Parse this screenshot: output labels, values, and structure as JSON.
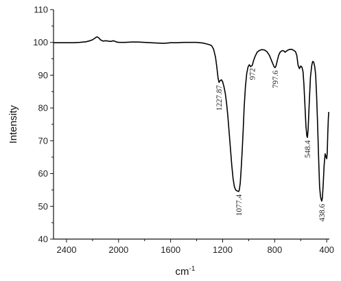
{
  "chart_data": {
    "type": "line",
    "xlabel": "cm",
    "xlabel_superscript": "-1",
    "ylabel": "Intensity",
    "xlim": [
      2500,
      380
    ],
    "ylim": [
      40,
      110
    ],
    "x_reversed": true,
    "xticks": [
      2400,
      2000,
      1600,
      1200,
      800,
      400
    ],
    "yticks": [
      40,
      50,
      60,
      70,
      80,
      90,
      100,
      110
    ],
    "grid": false,
    "series": [
      {
        "x": [
          2500,
          2450,
          2400,
          2350,
          2300,
          2250,
          2220,
          2200,
          2185,
          2175,
          2165,
          2150,
          2140,
          2120,
          2100,
          2080,
          2060,
          2040,
          2020,
          2000,
          1950,
          1900,
          1850,
          1800,
          1750,
          1700,
          1650,
          1600,
          1550,
          1500,
          1450,
          1400,
          1350,
          1320,
          1300,
          1285,
          1270,
          1255,
          1245,
          1235,
          1227.87,
          1220,
          1210,
          1200,
          1190,
          1180,
          1170,
          1160,
          1150,
          1140,
          1130,
          1120,
          1110,
          1100,
          1090,
          1080,
          1077.4,
          1072,
          1065,
          1058,
          1050,
          1042,
          1035,
          1025,
          1015,
          1005,
          995,
          985,
          972,
          962,
          950,
          935,
          920,
          900,
          880,
          860,
          840,
          820,
          805,
          797.6,
          790,
          780,
          770,
          760,
          750,
          740,
          730,
          720,
          705,
          690,
          670,
          655,
          640,
          630,
          620,
          610,
          600,
          590,
          582,
          575,
          568,
          560,
          553,
          548.4,
          543,
          535,
          525,
          515,
          508,
          500,
          492,
          485,
          478,
          470,
          462,
          455,
          448,
          442,
          438.6,
          434,
          428,
          420,
          412,
          405,
          400,
          396,
          392,
          388,
          385
        ],
        "y": [
          99.9,
          99.9,
          99.9,
          99.9,
          100.0,
          100.2,
          100.5,
          100.8,
          101.2,
          101.5,
          101.7,
          101.3,
          100.8,
          100.4,
          100.5,
          100.4,
          100.3,
          100.5,
          100.2,
          100.0,
          100.0,
          100.1,
          100.1,
          100.0,
          99.9,
          99.8,
          99.7,
          99.9,
          99.9,
          100.0,
          100.0,
          100.0,
          99.8,
          99.5,
          99.3,
          99.0,
          98.0,
          95.5,
          92.5,
          89.0,
          87.8,
          88.3,
          88.6,
          88.0,
          86.5,
          84.5,
          81.5,
          77.5,
          72.5,
          67.5,
          62.5,
          58.5,
          56.0,
          55.0,
          54.7,
          54.6,
          54.5,
          55.0,
          57.0,
          61.0,
          67.0,
          73.5,
          80.0,
          86.5,
          90.5,
          92.5,
          93.2,
          92.6,
          93.0,
          94.5,
          95.8,
          97.0,
          97.5,
          97.8,
          97.7,
          97.2,
          96.0,
          94.0,
          92.6,
          92.3,
          92.8,
          94.5,
          96.0,
          96.9,
          97.3,
          97.5,
          97.4,
          97.0,
          97.5,
          97.8,
          97.9,
          97.6,
          97.2,
          96.0,
          93.0,
          92.0,
          92.8,
          92.4,
          91.0,
          87.0,
          81.0,
          74.5,
          71.5,
          71.0,
          73.5,
          81.0,
          89.5,
          93.0,
          94.2,
          94.0,
          92.5,
          90.0,
          84.0,
          75.0,
          64.0,
          56.0,
          53.0,
          52.0,
          51.6,
          52.5,
          56.0,
          62.5,
          66.0,
          65.0,
          64.5,
          66.5,
          72.0,
          76.5,
          78.8
        ]
      }
    ],
    "annotations": [
      {
        "text": "1227.87",
        "x": 1227.87,
        "y": 87.8
      },
      {
        "text": "972",
        "x": 972,
        "y": 93.0
      },
      {
        "text": "797.6",
        "x": 797.6,
        "y": 92.3
      },
      {
        "text": "1077.4",
        "x": 1077.4,
        "y": 54.5
      },
      {
        "text": "548.4",
        "x": 548.4,
        "y": 71.0
      },
      {
        "text": "438.6",
        "x": 438.6,
        "y": 51.6
      }
    ]
  }
}
